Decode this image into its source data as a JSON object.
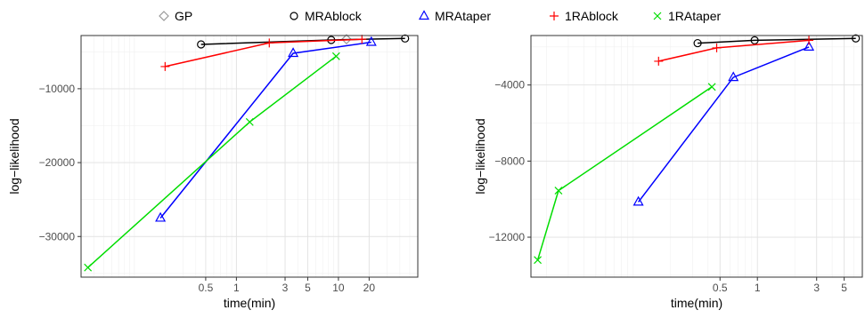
{
  "chart_data": {
    "type": "line",
    "legend": {
      "placement": "top",
      "entries": [
        {
          "name": "GP",
          "color": "#999999",
          "marker": "diamond"
        },
        {
          "name": "MRAblock",
          "color": "#000000",
          "marker": "circle"
        },
        {
          "name": "MRAtaper",
          "color": "#0000ff",
          "marker": "triangle"
        },
        {
          "name": "1RAblock",
          "color": "#ff0000",
          "marker": "plus"
        },
        {
          "name": "1RAtaper",
          "color": "#00dd00",
          "marker": "cross"
        }
      ]
    },
    "grid": true,
    "log_x": true,
    "panels": [
      {
        "xlabel": "time(min)",
        "ylabel": "log−likelihood",
        "xlim": [
          0.03,
          60
        ],
        "ylim": [
          -35500,
          -2800
        ],
        "xticks": [
          0.5,
          1,
          3,
          5,
          10,
          20
        ],
        "xtick_labels": [
          "0.5",
          "1",
          "3",
          "5",
          "10",
          "20"
        ],
        "yticks": [
          -10000,
          -20000,
          -30000
        ],
        "ytick_labels": [
          "−10000",
          "−20000",
          "−30000"
        ],
        "series": [
          {
            "name": "GP",
            "x": [
              12
            ],
            "y": [
              -3300
            ]
          },
          {
            "name": "MRAblock",
            "x": [
              0.45,
              8.5,
              45
            ],
            "y": [
              -4000,
              -3400,
              -3200
            ]
          },
          {
            "name": "MRAtaper",
            "x": [
              0.18,
              3.6,
              21
            ],
            "y": [
              -27500,
              -5200,
              -3700
            ]
          },
          {
            "name": "1RAblock",
            "x": [
              0.2,
              2.1,
              17
            ],
            "y": [
              -7000,
              -3800,
              -3300
            ]
          },
          {
            "name": "1RAtaper",
            "x": [
              0.035,
              1.35,
              9.5
            ],
            "y": [
              -34200,
              -14500,
              -5600
            ]
          }
        ]
      },
      {
        "xlabel": "time(min)",
        "ylabel": "log−likelihood",
        "xlim": [
          0.015,
          7
        ],
        "ylim": [
          -14100,
          -1400
        ],
        "xticks": [
          0.5,
          1,
          3,
          5
        ],
        "xtick_labels": [
          "0.5",
          "1",
          "3",
          "5"
        ],
        "yticks": [
          -4000,
          -8000,
          -12000
        ],
        "ytick_labels": [
          "−4000",
          "−8000",
          "−12000"
        ],
        "series": [
          {
            "name": "MRAblock",
            "x": [
              0.33,
              0.95,
              6.2
            ],
            "y": [
              -1800,
              -1650,
              -1550
            ]
          },
          {
            "name": "MRAtaper",
            "x": [
              0.11,
              0.64,
              2.6
            ],
            "y": [
              -10150,
              -3600,
              -2000
            ]
          },
          {
            "name": "1RAblock",
            "x": [
              0.16,
              0.47,
              2.6
            ],
            "y": [
              -2750,
              -2050,
              -1650
            ]
          },
          {
            "name": "1RAtaper",
            "x": [
              0.017,
              0.025,
              0.43
            ],
            "y": [
              -13200,
              -9550,
              -4100
            ]
          }
        ]
      }
    ]
  }
}
